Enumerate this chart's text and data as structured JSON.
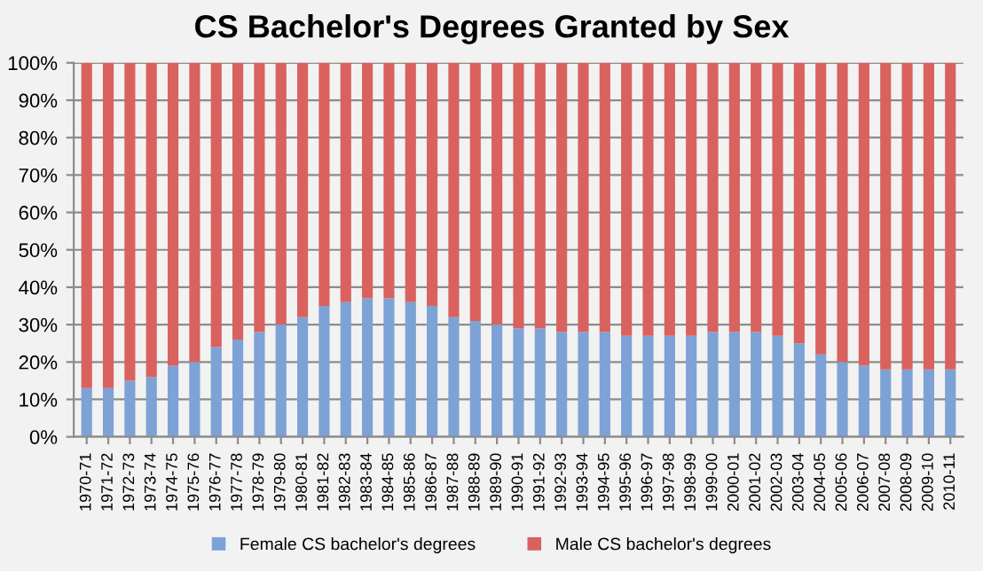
{
  "chart_data": {
    "type": "bar",
    "title": "CS Bachelor's Degrees Granted by Sex",
    "categories": [
      "1970-71",
      "1971-72",
      "1972-73",
      "1973-74",
      "1974-75",
      "1975-76",
      "1976-77",
      "1977-78",
      "1978-79",
      "1979-80",
      "1980-81",
      "1981-82",
      "1982-83",
      "1983-84",
      "1984-85",
      "1985-86",
      "1986-87",
      "1987-88",
      "1988-89",
      "1989-90",
      "1990-91",
      "1991-92",
      "1992-93",
      "1993-94",
      "1994-95",
      "1995-96",
      "1996-97",
      "1997-98",
      "1998-99",
      "1999-00",
      "2000-01",
      "2001-02",
      "2002-03",
      "2003-04",
      "2004-05",
      "2005-06",
      "2006-07",
      "2007-08",
      "2008-09",
      "2009-10",
      "2010-11"
    ],
    "series": [
      {
        "name": "Female CS bachelor's degrees",
        "color": "#7da2d6",
        "values": [
          13,
          13,
          15,
          16,
          19,
          20,
          24,
          26,
          28,
          30,
          32,
          35,
          36,
          37,
          37,
          36,
          35,
          32,
          31,
          30,
          29,
          29,
          28,
          28,
          28,
          27,
          27,
          27,
          27,
          28,
          28,
          28,
          27,
          25,
          22,
          20,
          19,
          18,
          18,
          18,
          18
        ]
      },
      {
        "name": "Male CS bachelor's degrees",
        "color": "#d9625f",
        "values": [
          87,
          87,
          85,
          84,
          81,
          80,
          76,
          74,
          72,
          70,
          68,
          65,
          64,
          63,
          63,
          64,
          65,
          68,
          69,
          70,
          71,
          71,
          72,
          72,
          72,
          73,
          73,
          73,
          73,
          72,
          72,
          72,
          73,
          75,
          78,
          80,
          81,
          82,
          82,
          82,
          82
        ]
      }
    ],
    "stacked": true,
    "ylim": [
      0,
      100
    ],
    "yticks": [
      {
        "value": 0,
        "label": "0%"
      },
      {
        "value": 10,
        "label": "10%"
      },
      {
        "value": 20,
        "label": "20%"
      },
      {
        "value": 30,
        "label": "30%"
      },
      {
        "value": 40,
        "label": "40%"
      },
      {
        "value": 50,
        "label": "50%"
      },
      {
        "value": 60,
        "label": "60%"
      },
      {
        "value": 70,
        "label": "70%"
      },
      {
        "value": 80,
        "label": "80%"
      },
      {
        "value": 90,
        "label": "90%"
      },
      {
        "value": 100,
        "label": "100%"
      }
    ],
    "grid": "y",
    "legend": "bottom"
  }
}
